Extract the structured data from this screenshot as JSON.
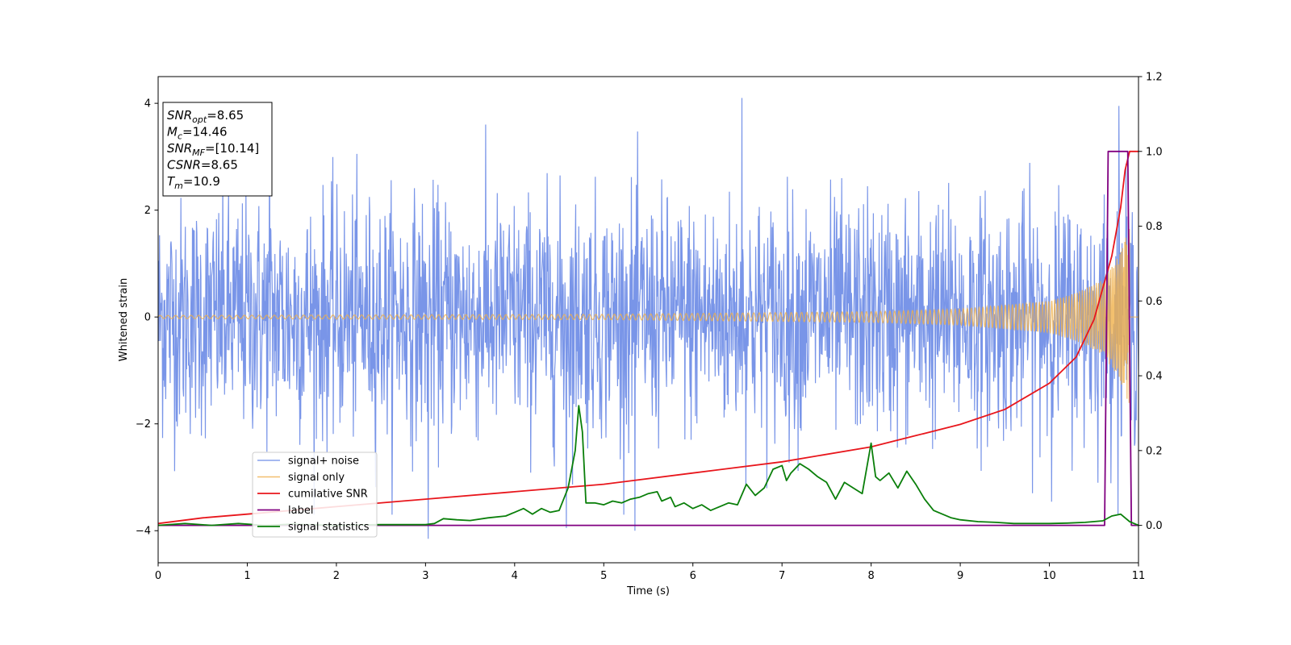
{
  "chart_data": {
    "type": "line",
    "xlabel": "Time (s)",
    "ylabel": "Whitened strain",
    "xlim": [
      0,
      11
    ],
    "ylim_left": [
      -4.6,
      4.5
    ],
    "ylim_right": [
      -0.1,
      1.2
    ],
    "xticks": [
      "0",
      "1",
      "2",
      "3",
      "4",
      "5",
      "6",
      "7",
      "8",
      "9",
      "10",
      "11"
    ],
    "yticks_left": [
      "4",
      "2",
      "0",
      "−2",
      "−4"
    ],
    "yticks_right": [
      "1.2",
      "1.0",
      "0.8",
      "0.6",
      "0.4",
      "0.2",
      "0.0"
    ],
    "grid": false,
    "legend_placement": "lower-left",
    "annotation": [
      {
        "base": "SNR",
        "sub": "opt",
        "value": "=8.65"
      },
      {
        "base": "M",
        "sub": "c",
        "value": "=14.46"
      },
      {
        "base": "SNR",
        "sub": "MF",
        "value": "=[10.14]"
      },
      {
        "base": "CSNR",
        "sub": "",
        "value": "=8.65"
      },
      {
        "base": "T",
        "sub": "m",
        "value": "=10.9"
      }
    ],
    "series": [
      {
        "name": "signal+ noise",
        "axis": "left",
        "color": "#6a89e6",
        "style": "noise",
        "amplitude_std": 1.1,
        "tall_spikes": [
          [
            1.25,
            3.8
          ],
          [
            6.55,
            4.1
          ],
          [
            10.78,
            3.95
          ],
          [
            3.03,
            -4.15
          ],
          [
            4.58,
            -3.95
          ],
          [
            5.35,
            -4.0
          ]
        ]
      },
      {
        "name": "signal only",
        "axis": "left",
        "color": "#f0b04a",
        "style": "chirp",
        "t_merger": 10.9,
        "envelope": {
          "x": [
            0,
            5,
            8,
            9,
            10,
            10.3,
            10.6,
            10.8,
            10.9,
            11
          ],
          "y": [
            0.03,
            0.05,
            0.1,
            0.15,
            0.3,
            0.45,
            0.7,
            1.2,
            1.7,
            0
          ]
        }
      },
      {
        "name": "cumilative SNR",
        "axis": "right",
        "color": "#e8161c",
        "x": [
          0,
          0.5,
          1,
          2,
          3,
          4,
          5,
          6,
          7,
          8,
          8.5,
          9,
          9.5,
          10,
          10.3,
          10.5,
          10.7,
          10.8,
          10.85,
          10.9,
          11
        ],
        "y": [
          0.005,
          0.02,
          0.03,
          0.05,
          0.07,
          0.09,
          0.11,
          0.14,
          0.17,
          0.21,
          0.24,
          0.27,
          0.31,
          0.38,
          0.45,
          0.55,
          0.72,
          0.85,
          0.95,
          1.0,
          1.0
        ]
      },
      {
        "name": "label",
        "axis": "right",
        "color": "#800080",
        "x": [
          0,
          10.62,
          10.66,
          10.88,
          10.92,
          11
        ],
        "y": [
          0,
          0,
          1,
          1,
          0,
          0
        ]
      },
      {
        "name": "signal statistics",
        "axis": "right",
        "color": "#0a7f0a",
        "x": [
          0,
          0.3,
          0.6,
          0.9,
          1.2,
          1.5,
          2,
          2.5,
          3,
          3.1,
          3.2,
          3.35,
          3.5,
          3.7,
          3.9,
          4,
          4.1,
          4.2,
          4.3,
          4.4,
          4.5,
          4.6,
          4.68,
          4.72,
          4.76,
          4.8,
          4.9,
          5,
          5.1,
          5.2,
          5.3,
          5.4,
          5.5,
          5.6,
          5.65,
          5.75,
          5.8,
          5.9,
          6,
          6.1,
          6.2,
          6.3,
          6.4,
          6.5,
          6.6,
          6.7,
          6.8,
          6.9,
          7,
          7.05,
          7.1,
          7.2,
          7.3,
          7.4,
          7.5,
          7.6,
          7.7,
          7.8,
          7.9,
          8,
          8.05,
          8.1,
          8.2,
          8.3,
          8.4,
          8.5,
          8.6,
          8.7,
          8.8,
          8.9,
          9,
          9.2,
          9.4,
          9.6,
          9.8,
          10,
          10.2,
          10.4,
          10.6,
          10.7,
          10.8,
          10.9,
          11
        ],
        "y": [
          0,
          0.005,
          0,
          0.005,
          0,
          0.003,
          0,
          0.002,
          0.002,
          0.005,
          0.018,
          0.015,
          0.013,
          0.02,
          0.025,
          0.035,
          0.045,
          0.03,
          0.045,
          0.035,
          0.04,
          0.1,
          0.2,
          0.32,
          0.25,
          0.06,
          0.06,
          0.055,
          0.065,
          0.06,
          0.07,
          0.075,
          0.085,
          0.09,
          0.065,
          0.075,
          0.05,
          0.06,
          0.045,
          0.055,
          0.04,
          0.05,
          0.06,
          0.055,
          0.11,
          0.08,
          0.1,
          0.15,
          0.16,
          0.12,
          0.14,
          0.165,
          0.15,
          0.13,
          0.115,
          0.07,
          0.115,
          0.1,
          0.085,
          0.22,
          0.13,
          0.12,
          0.14,
          0.1,
          0.145,
          0.11,
          0.07,
          0.04,
          0.03,
          0.02,
          0.015,
          0.01,
          0.008,
          0.005,
          0.005,
          0.005,
          0.006,
          0.008,
          0.012,
          0.025,
          0.03,
          0.01,
          0
        ]
      }
    ]
  }
}
